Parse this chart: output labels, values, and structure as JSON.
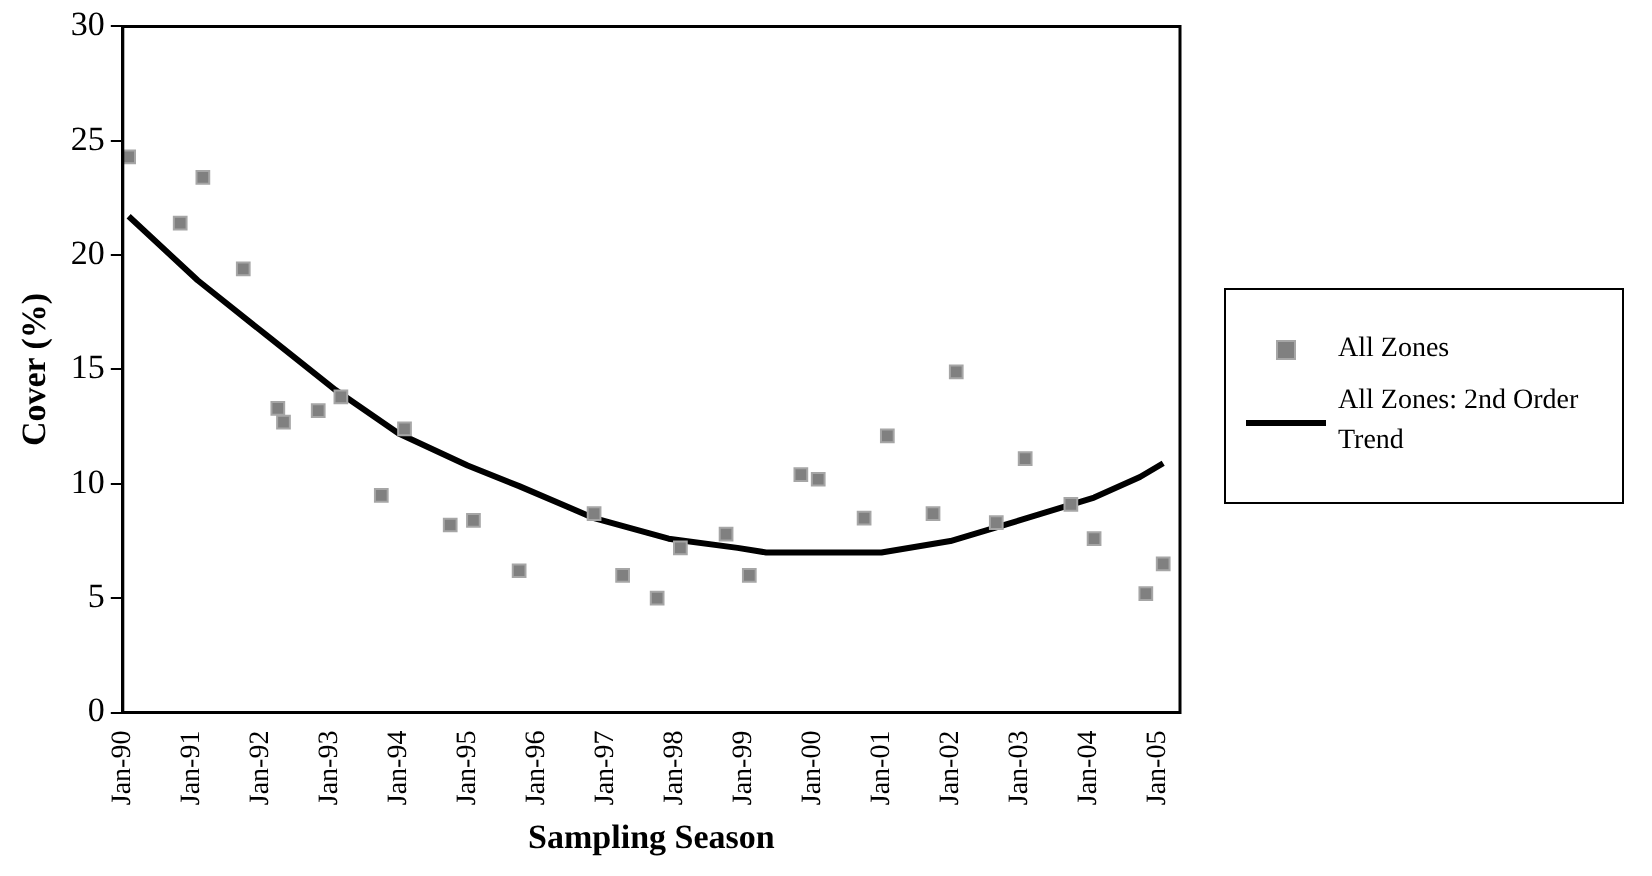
{
  "chart_data": {
    "type": "scatter",
    "xlabel": "Sampling Season",
    "ylabel": "Cover (%)",
    "xlim": [
      "1990-01",
      "2005-05"
    ],
    "xticks": [
      {
        "value": "1990-01",
        "label": "Jan-90"
      },
      {
        "value": "1991-01",
        "label": "Jan-91"
      },
      {
        "value": "1992-01",
        "label": "Jan-92"
      },
      {
        "value": "1993-01",
        "label": "Jan-93"
      },
      {
        "value": "1994-01",
        "label": "Jan-94"
      },
      {
        "value": "1995-01",
        "label": "Jan-95"
      },
      {
        "value": "1996-01",
        "label": "Jan-96"
      },
      {
        "value": "1997-01",
        "label": "Jan-97"
      },
      {
        "value": "1998-01",
        "label": "Jan-98"
      },
      {
        "value": "1999-01",
        "label": "Jan-99"
      },
      {
        "value": "2000-01",
        "label": "Jan-00"
      },
      {
        "value": "2001-01",
        "label": "Jan-01"
      },
      {
        "value": "2002-01",
        "label": "Jan-02"
      },
      {
        "value": "2003-01",
        "label": "Jan-03"
      },
      {
        "value": "2004-01",
        "label": "Jan-04"
      },
      {
        "value": "2005-01",
        "label": "Jan-05"
      }
    ],
    "ylim": [
      0,
      30
    ],
    "yticks": [
      0,
      5,
      10,
      15,
      20,
      25,
      30
    ],
    "grid": false,
    "legend": "right",
    "series": [
      {
        "name": "All Zones",
        "marker": "square",
        "color": "#808080",
        "x": [
          "1990-02",
          "1990-11",
          "1991-03",
          "1991-10",
          "1992-04",
          "1992-05",
          "1992-11",
          "1993-03",
          "1993-10",
          "1994-02",
          "1994-10",
          "1995-02",
          "1995-10",
          "1996-11",
          "1997-04",
          "1997-10",
          "1998-02",
          "1998-10",
          "1999-02",
          "1999-11",
          "2000-02",
          "2000-10",
          "2001-02",
          "2001-10",
          "2002-02",
          "2002-09",
          "2003-02",
          "2003-10",
          "2004-02",
          "2004-11",
          "2005-02"
        ],
        "values": [
          24.3,
          21.4,
          23.4,
          19.4,
          13.3,
          12.7,
          13.2,
          13.8,
          9.5,
          12.4,
          8.2,
          8.4,
          6.2,
          8.7,
          6.0,
          5.0,
          7.2,
          7.8,
          6.0,
          10.4,
          10.2,
          8.5,
          12.1,
          8.7,
          14.9,
          8.3,
          11.1,
          9.1,
          7.6,
          5.2,
          6.5
        ]
      },
      {
        "name": "All Zones: 2nd Order Trend",
        "type": "line",
        "marker": "none",
        "line_style": "solid",
        "color": "#000000",
        "x": [
          "1990-02",
          "1991-02",
          "1992-02",
          "1993-02",
          "1994-01",
          "1995-01",
          "1995-10",
          "1996-11",
          "1997-12",
          "1998-12",
          "1999-05",
          "2000-01",
          "2001-01",
          "2002-01",
          "2003-01",
          "2004-02",
          "2004-10",
          "2005-02"
        ],
        "values": [
          21.7,
          18.9,
          16.5,
          14.1,
          12.2,
          10.8,
          9.9,
          8.5,
          7.6,
          7.2,
          7.0,
          7.0,
          7.0,
          7.5,
          8.4,
          9.4,
          10.3,
          10.9
        ]
      }
    ]
  }
}
